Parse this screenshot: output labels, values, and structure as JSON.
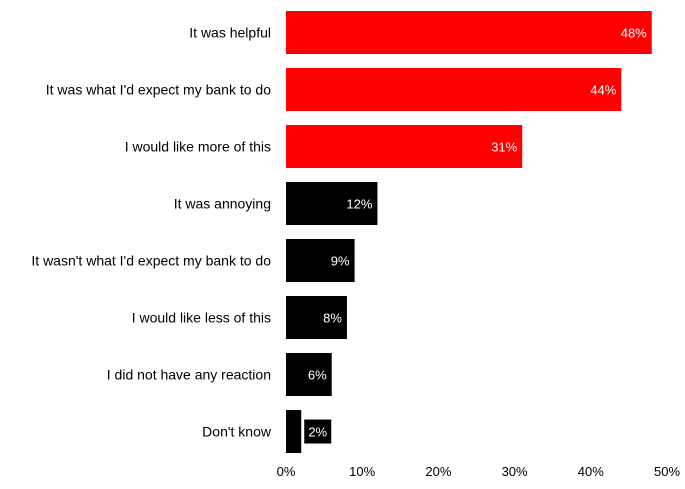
{
  "chart_data": {
    "type": "bar",
    "orientation": "horizontal",
    "categories": [
      "It was helpful",
      "It was what I'd expect my bank to do",
      "I would like more of this",
      "It was annoying",
      "It wasn't what I'd expect my bank to do",
      "I would like less of this",
      "I did not have any reaction",
      "Don't know"
    ],
    "values": [
      48,
      44,
      31,
      12,
      9,
      8,
      6,
      2
    ],
    "data_labels": [
      "48%",
      "44%",
      "31%",
      "12%",
      "9%",
      "8%",
      "6%",
      "2%"
    ],
    "bar_colors": [
      "#ff0000",
      "#ff0000",
      "#ff0000",
      "#000000",
      "#000000",
      "#000000",
      "#000000",
      "#000000"
    ],
    "xlim": [
      0,
      50
    ],
    "xticks": [
      0,
      10,
      20,
      30,
      40,
      50
    ],
    "xtick_labels": [
      "0%",
      "10%",
      "20%",
      "30%",
      "40%",
      "50%"
    ],
    "title": "",
    "xlabel": "",
    "ylabel": "",
    "grid": false,
    "legend": "none"
  },
  "colors": {
    "positive": "#ff0000",
    "negative": "#000000",
    "label_text": "#ffffff",
    "axis_text": "#000000"
  }
}
